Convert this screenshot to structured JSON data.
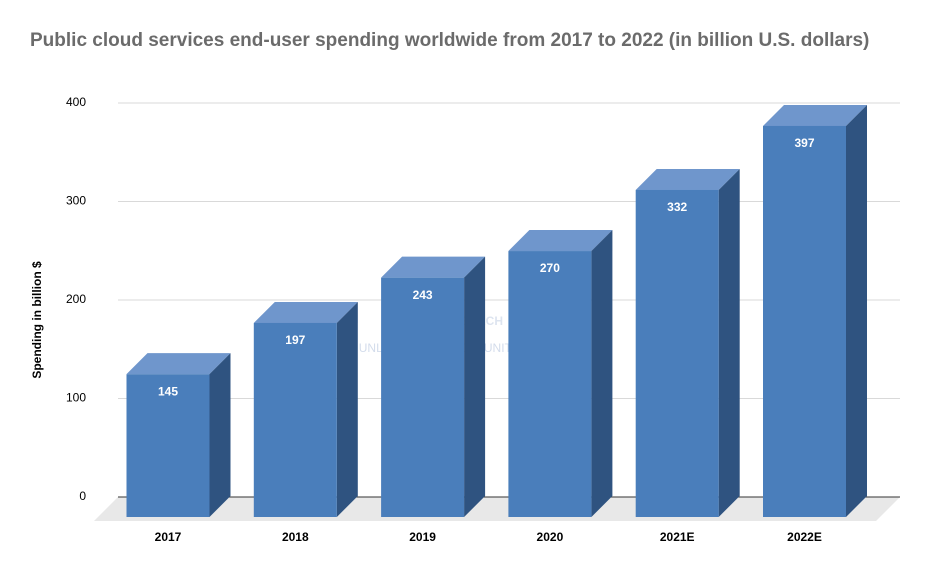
{
  "chart_data": {
    "type": "bar3d",
    "title": "Public cloud services end-user spending worldwide from 2017 to 2022 (in billion U.S. dollars)",
    "y_label": "Spending in billion $",
    "categories": [
      "2017",
      "2018",
      "2019",
      "2020",
      "2021E",
      "2022E"
    ],
    "values": [
      145,
      197,
      243,
      270,
      332,
      397
    ],
    "color": "#4a7ebb",
    "ylim": [
      0,
      400
    ],
    "yticks": [
      0,
      100,
      200,
      300,
      400
    ],
    "grid": true,
    "watermark": [
      "JR RESEARCH",
      "UNLOCKING OPPORTUNITIES"
    ]
  }
}
